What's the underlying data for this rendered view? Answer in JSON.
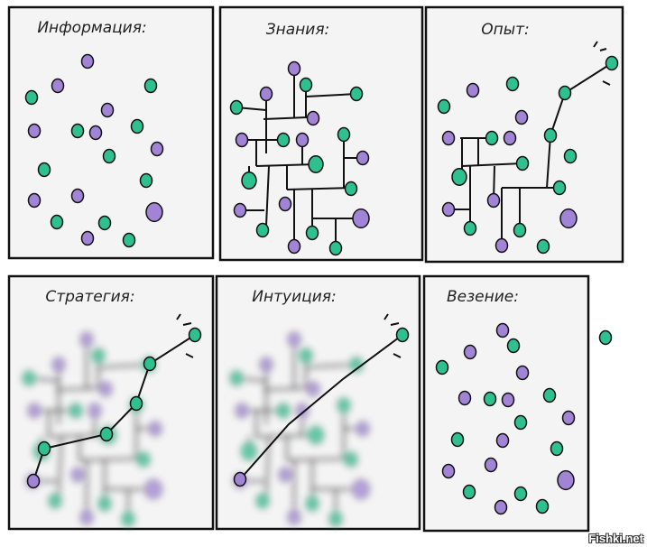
{
  "panels": [
    {
      "title": "Информация:"
    },
    {
      "title": "Знания:"
    },
    {
      "title": "Опыт:"
    },
    {
      "title": "Стратегия:"
    },
    {
      "title": "Интуиция:"
    },
    {
      "title": "Везение:"
    }
  ],
  "colors": {
    "green": "#2fc08f",
    "purple": "#a184d6",
    "ink": "#111111",
    "paper": "#f4f4f4"
  },
  "watermark": "Fishki.net"
}
